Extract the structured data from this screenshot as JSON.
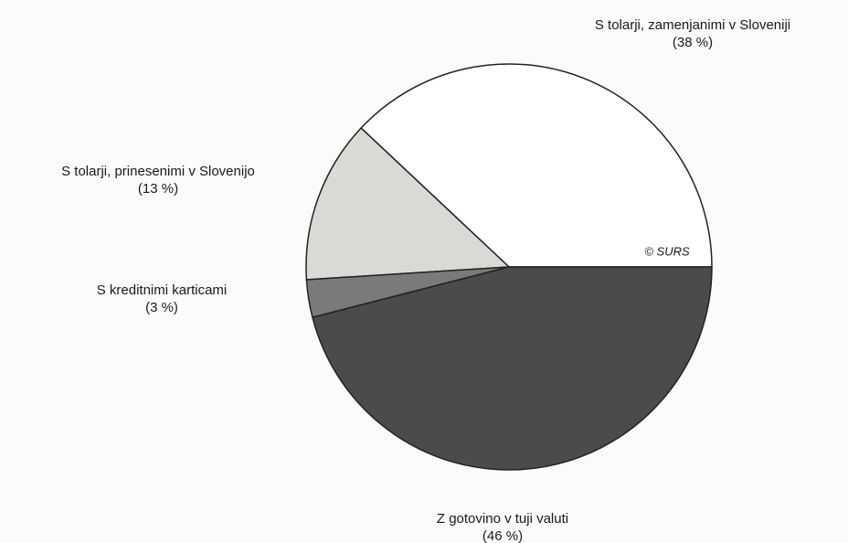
{
  "chart_data": {
    "type": "pie",
    "categories": [
      "S tolarji, zamenjanimi v Sloveniji",
      "S tolarji, prinesenimi v Slovenijo",
      "S kreditnimi karticami",
      "Z gotovino v tuji valuti"
    ],
    "values": [
      38,
      13,
      3,
      46
    ],
    "value_labels": [
      "(38 %)",
      "(13 %)",
      "(3 %)",
      "(46 %)"
    ],
    "colors": [
      "#ffffff",
      "#d9d9d6",
      "#7a7a7a",
      "#4b4b4b"
    ],
    "annotation": "© SURS"
  }
}
